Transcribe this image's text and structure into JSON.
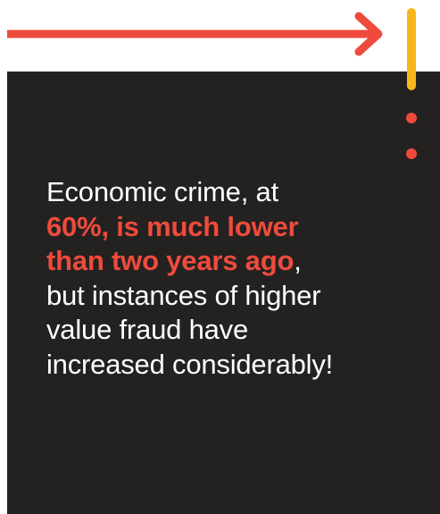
{
  "text": {
    "lines": [
      [
        "Economic crime, at"
      ],
      [
        "60%, is much lower"
      ],
      [
        "than two years ago",
        ","
      ],
      [
        "but instances of higher"
      ],
      [
        "value fraud have"
      ],
      [
        "increased considerably!"
      ]
    ]
  }
}
